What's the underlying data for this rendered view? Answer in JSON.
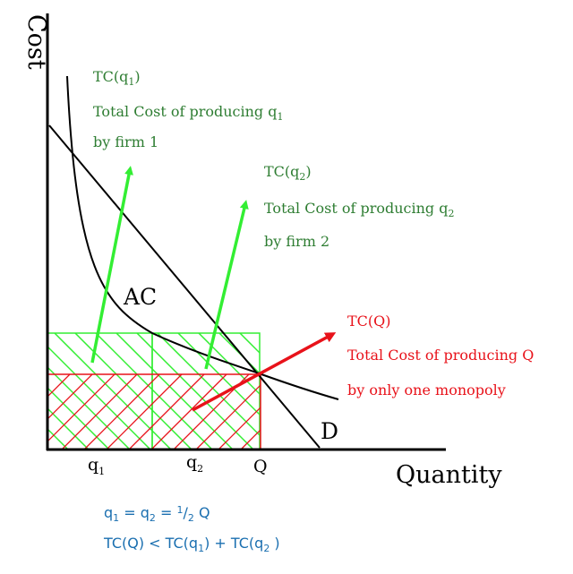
{
  "axes": {
    "y_label": "Cost",
    "x_label": "Quantity"
  },
  "curves": {
    "ac_label": "AC",
    "d_label": "D"
  },
  "ticks": {
    "q1": {
      "base": "q",
      "sub": "1"
    },
    "q2": {
      "base": "q",
      "sub": "2"
    },
    "Q": "Q"
  },
  "colors": {
    "green": "#2e7d32",
    "bright_green": "#33ee33",
    "red": "#e8121a",
    "blue": "#1a6fb0",
    "black": "#000000"
  },
  "annotations": {
    "firm1": {
      "title_base": "TC(q",
      "title_sub": "1",
      "title_end": ")",
      "line2_base": "Total Cost of producing q",
      "line2_sub": "1",
      "line3": "by firm 1"
    },
    "firm2": {
      "title_base": "TC(q",
      "title_sub": "2",
      "title_end": ")",
      "line2_base": "Total Cost of producing q",
      "line2_sub": "2",
      "line3": "by firm 2"
    },
    "monopoly": {
      "title": "TC(Q)",
      "line2": "Total Cost of producing Q",
      "line3": "by only one monopoly"
    }
  },
  "formulas": {
    "line1": {
      "a": "q",
      "a_sub": "1",
      "eq1": " = q",
      "b_sub": "2",
      "eq2": " = ",
      "num": "1",
      "slash": "/",
      "den": "2",
      "end": " Q"
    },
    "line2": {
      "p1": "TC(Q) < TC(q",
      "s1": "1",
      "p2": ") + TC(q",
      "s2": "2",
      "p3": " )"
    }
  }
}
